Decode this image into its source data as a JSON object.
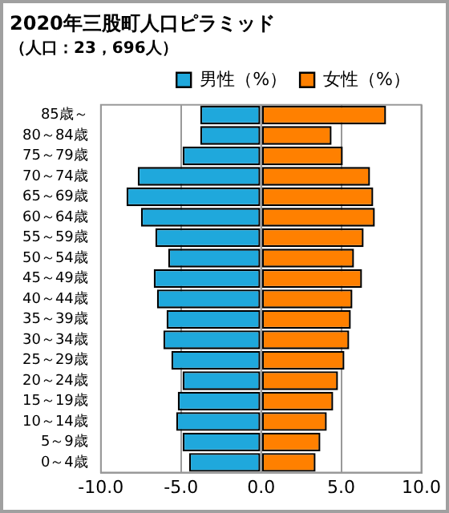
{
  "chart_data": {
    "type": "bar",
    "orientation": "horizontal",
    "stacked": true,
    "title": "2020年三股町人口ピラミッド",
    "subtitle": "（人口：23，696人）",
    "categories": [
      "85歳～",
      "80～84歳",
      "75～79歳",
      "70～74歳",
      "65～69歳",
      "60～64歳",
      "55～59歳",
      "50～54歳",
      "45～49歳",
      "40～44歳",
      "35～39歳",
      "30～34歳",
      "25～29歳",
      "20～24歳",
      "15～19歳",
      "10～14歳",
      "5～9歳",
      "0～4歳"
    ],
    "series": [
      {
        "name": "男性（%）",
        "color": "#1fa8dc",
        "values": [
          -3.8,
          -3.8,
          -4.9,
          -7.7,
          -8.4,
          -7.5,
          -6.6,
          -5.8,
          -6.7,
          -6.5,
          -5.9,
          -6.1,
          -5.6,
          -4.9,
          -5.2,
          -5.3,
          -4.9,
          -4.5
        ]
      },
      {
        "name": "女性（%）",
        "color": "#ff8000",
        "values": [
          7.8,
          4.4,
          5.1,
          6.8,
          7.0,
          7.1,
          6.4,
          5.8,
          6.3,
          5.7,
          5.6,
          5.5,
          5.2,
          4.8,
          4.5,
          4.1,
          3.7,
          3.4
        ]
      }
    ],
    "xlim": [
      -10,
      10
    ],
    "xticks": [
      {
        "value": -10,
        "label": "-10.0"
      },
      {
        "value": -5,
        "label": "-5.0"
      },
      {
        "value": 0,
        "label": "0.0"
      },
      {
        "value": 5,
        "label": "5.0"
      },
      {
        "value": 10,
        "label": "10.0"
      }
    ],
    "grid": "x",
    "legend": "top right"
  }
}
